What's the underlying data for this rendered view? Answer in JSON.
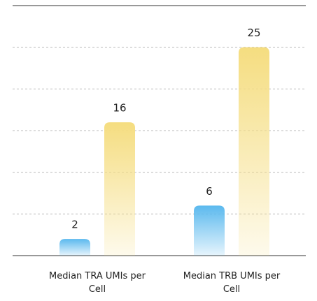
{
  "chart_data": {
    "type": "bar",
    "categories": [
      "Median TRA UMIs per Cell",
      "Median TRB UMIs per Cell"
    ],
    "series": [
      {
        "color": "#5bb9ee",
        "values": [
          2,
          6
        ]
      },
      {
        "color": "#f5dd80",
        "values": [
          16,
          25
        ]
      }
    ],
    "ylim": [
      0,
      30
    ],
    "yticks": [
      0,
      5,
      10,
      15,
      20,
      25,
      30
    ],
    "grid": true
  }
}
